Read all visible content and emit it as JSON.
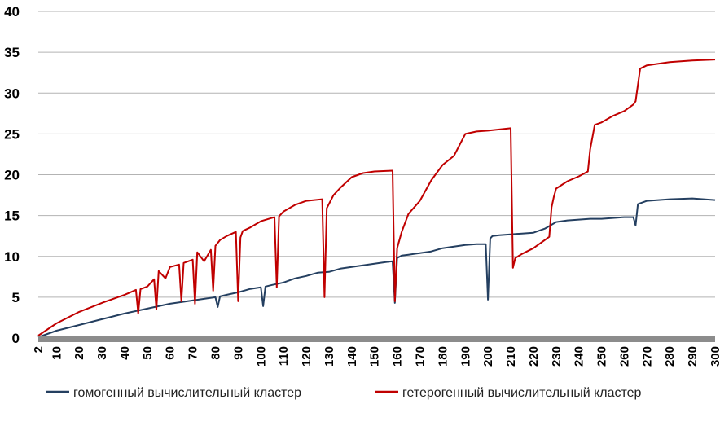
{
  "chart_data": {
    "type": "line",
    "title": "",
    "xlabel": "",
    "ylabel": "",
    "xlim": [
      2,
      300
    ],
    "ylim": [
      0,
      40
    ],
    "y_ticks": [
      "0",
      "5",
      "10",
      "15",
      "20",
      "25",
      "30",
      "35",
      "40"
    ],
    "x_ticks": [
      "2",
      "10",
      "20",
      "30",
      "40",
      "50",
      "60",
      "70",
      "80",
      "90",
      "100",
      "110",
      "120",
      "130",
      "140",
      "150",
      "160",
      "170",
      "180",
      "190",
      "200",
      "210",
      "220",
      "230",
      "240",
      "250",
      "260",
      "270",
      "280",
      "290",
      "300"
    ],
    "grid": "horizontal",
    "legend_position": "bottom",
    "series": [
      {
        "name": "гомогенный вычислительный кластер",
        "color": "#243f60",
        "x": [
          2,
          10,
          20,
          30,
          40,
          50,
          60,
          70,
          75,
          80,
          81,
          82,
          85,
          90,
          95,
          100,
          101,
          102,
          105,
          110,
          115,
          120,
          125,
          130,
          135,
          140,
          145,
          150,
          155,
          158,
          159,
          160,
          162,
          165,
          170,
          175,
          180,
          185,
          190,
          195,
          199,
          200,
          201,
          202,
          205,
          210,
          215,
          220,
          225,
          230,
          235,
          240,
          245,
          250,
          255,
          260,
          264,
          265,
          266,
          270,
          280,
          290,
          300
        ],
        "y": [
          0.1,
          0.9,
          1.6,
          2.3,
          3.0,
          3.6,
          4.2,
          4.6,
          4.8,
          5.0,
          3.8,
          5.1,
          5.3,
          5.6,
          6.0,
          6.2,
          3.9,
          6.3,
          6.5,
          6.8,
          7.3,
          7.6,
          8.0,
          8.1,
          8.5,
          8.7,
          8.9,
          9.1,
          9.3,
          9.4,
          4.3,
          9.8,
          10.1,
          10.2,
          10.4,
          10.6,
          11.0,
          11.2,
          11.4,
          11.5,
          11.5,
          4.7,
          12.2,
          12.5,
          12.6,
          12.7,
          12.8,
          12.9,
          13.4,
          14.2,
          14.4,
          14.5,
          14.6,
          14.6,
          14.7,
          14.8,
          14.8,
          13.8,
          16.4,
          16.8,
          17.0,
          17.1,
          16.9
        ]
      },
      {
        "name": "гетерогенный вычислительный кластер",
        "color": "#c00000",
        "x": [
          2,
          10,
          20,
          30,
          40,
          45,
          46,
          47,
          50,
          53,
          54,
          55,
          58,
          60,
          64,
          65,
          66,
          70,
          71,
          72,
          75,
          78,
          79,
          80,
          82,
          85,
          89,
          90,
          91,
          92,
          95,
          100,
          106,
          107,
          108,
          110,
          115,
          120,
          127,
          128,
          129,
          132,
          135,
          140,
          145,
          150,
          158,
          159,
          160,
          162,
          165,
          170,
          175,
          180,
          185,
          190,
          195,
          200,
          210,
          211,
          212,
          215,
          220,
          225,
          227,
          228,
          229,
          230,
          235,
          240,
          244,
          245,
          247,
          250,
          255,
          260,
          264,
          265,
          267,
          270,
          280,
          290,
          300
        ],
        "y": [
          0.3,
          1.8,
          3.2,
          4.3,
          5.3,
          5.9,
          3.0,
          6.0,
          6.3,
          7.2,
          3.5,
          8.2,
          7.3,
          8.7,
          9.0,
          4.5,
          9.2,
          9.6,
          4.2,
          10.5,
          9.4,
          10.8,
          5.8,
          11.3,
          12.0,
          12.5,
          13.0,
          4.5,
          12.3,
          13.1,
          13.5,
          14.3,
          14.8,
          6.2,
          14.9,
          15.5,
          16.3,
          16.8,
          17.0,
          5.0,
          15.9,
          17.5,
          18.4,
          19.7,
          20.2,
          20.4,
          20.5,
          4.5,
          11.0,
          13.0,
          15.2,
          16.8,
          19.3,
          21.2,
          22.3,
          25.0,
          25.3,
          25.4,
          25.7,
          8.6,
          9.8,
          10.3,
          11.0,
          12.0,
          12.4,
          16.0,
          17.3,
          18.3,
          19.2,
          19.8,
          20.4,
          23.1,
          26.1,
          26.4,
          27.2,
          27.8,
          28.6,
          29.0,
          33.0,
          33.4,
          33.8,
          34.0,
          34.1
        ]
      }
    ]
  }
}
